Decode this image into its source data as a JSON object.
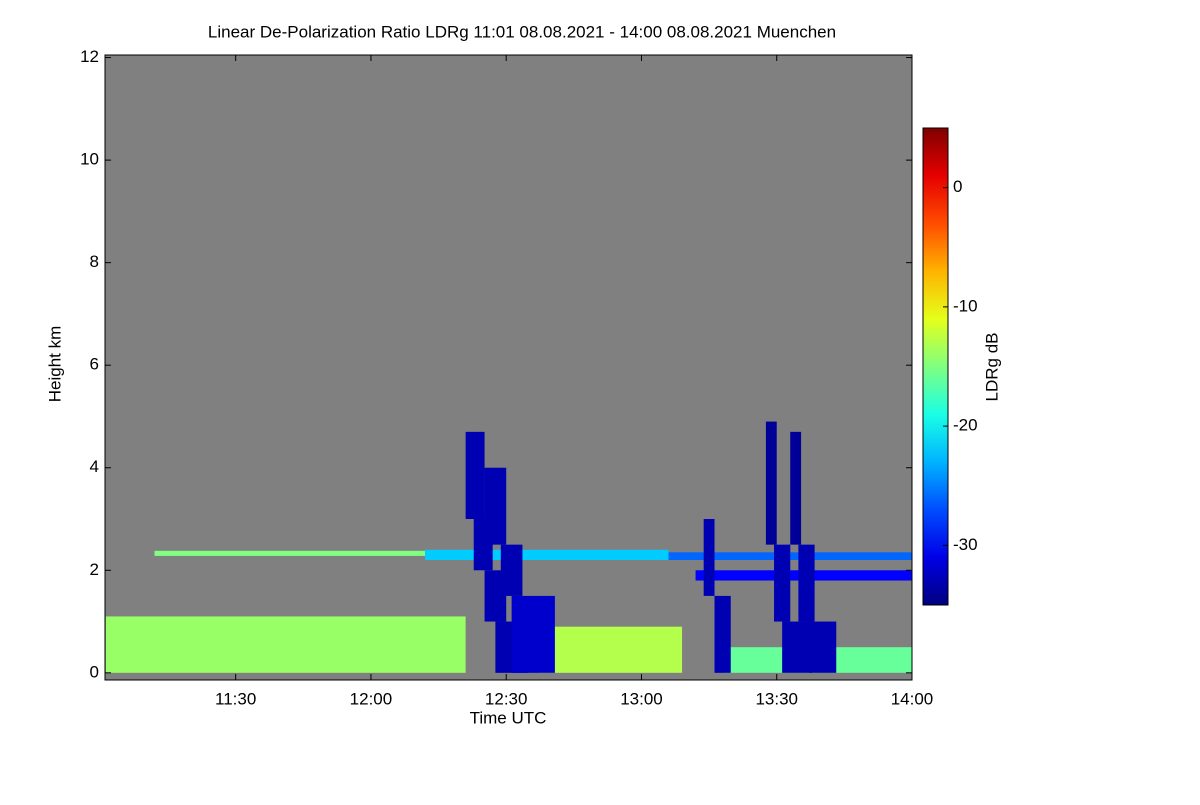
{
  "chart_data": {
    "type": "heatmap",
    "title": "Linear De-Polarization Ratio LDRg   11:01 08.08.2021 - 14:00 08.08.2021 Muenchen",
    "x_label": "Time UTC",
    "y_label": "Height km",
    "colorbar_label": "LDRg dB",
    "background_color": "#808080",
    "colormap": "jet",
    "xlim": [
      11.017,
      14.0
    ],
    "xticks": [
      {
        "value": 11.5,
        "label": "11:30"
      },
      {
        "value": 12.0,
        "label": "12:00"
      },
      {
        "value": 12.5,
        "label": "12:30"
      },
      {
        "value": 13.0,
        "label": "13:00"
      },
      {
        "value": 13.5,
        "label": "13:30"
      },
      {
        "value": 14.0,
        "label": "14:00"
      }
    ],
    "ylim": [
      -0.14,
      12.05
    ],
    "yticks": [
      0,
      2,
      4,
      6,
      8,
      10,
      12
    ],
    "clim": [
      -35,
      5
    ],
    "cticks": [
      0,
      -10,
      -20,
      -30
    ],
    "cells": [
      {
        "x": [
          11.02,
          12.35
        ],
        "y": [
          0,
          1.1
        ],
        "value": -14
      },
      {
        "x": [
          12.62,
          13.15
        ],
        "y": [
          0,
          0.9
        ],
        "value": -13
      },
      {
        "x": [
          13.3,
          14.0
        ],
        "y": [
          0,
          0.5
        ],
        "value": -16
      },
      {
        "x": [
          11.2,
          12.2
        ],
        "y": [
          2.28,
          2.38
        ],
        "value": -15
      },
      {
        "x": [
          12.2,
          13.1
        ],
        "y": [
          2.2,
          2.4
        ],
        "value": -22
      },
      {
        "x": [
          13.1,
          14.0
        ],
        "y": [
          2.2,
          2.35
        ],
        "value": -26
      },
      {
        "x": [
          13.2,
          14.0
        ],
        "y": [
          1.8,
          2.0
        ],
        "value": -30
      },
      {
        "x": [
          12.35,
          12.42
        ],
        "y": [
          3.0,
          4.7
        ],
        "value": -33
      },
      {
        "x": [
          12.38,
          12.45
        ],
        "y": [
          2.0,
          3.0
        ],
        "value": -33
      },
      {
        "x": [
          12.42,
          12.5
        ],
        "y": [
          1.0,
          2.0
        ],
        "value": -33
      },
      {
        "x": [
          12.46,
          12.58
        ],
        "y": [
          0,
          1.0
        ],
        "value": -33
      },
      {
        "x": [
          12.42,
          12.5
        ],
        "y": [
          2.5,
          4.0
        ],
        "value": -33
      },
      {
        "x": [
          12.48,
          12.56
        ],
        "y": [
          1.5,
          2.5
        ],
        "value": -33
      },
      {
        "x": [
          12.52,
          12.68
        ],
        "y": [
          0,
          1.5
        ],
        "value": -32
      },
      {
        "x": [
          13.23,
          13.27
        ],
        "y": [
          1.5,
          3.0
        ],
        "value": -33
      },
      {
        "x": [
          13.27,
          13.33
        ],
        "y": [
          0,
          1.5
        ],
        "value": -33
      },
      {
        "x": [
          13.46,
          13.5
        ],
        "y": [
          2.5,
          4.9
        ],
        "value": -34
      },
      {
        "x": [
          13.49,
          13.55
        ],
        "y": [
          1.0,
          2.5
        ],
        "value": -33
      },
      {
        "x": [
          13.52,
          13.63
        ],
        "y": [
          0,
          1.0
        ],
        "value": -33
      },
      {
        "x": [
          13.55,
          13.59
        ],
        "y": [
          2.5,
          4.7
        ],
        "value": -34
      },
      {
        "x": [
          13.58,
          13.64
        ],
        "y": [
          1.0,
          2.5
        ],
        "value": -33
      },
      {
        "x": [
          13.62,
          13.72
        ],
        "y": [
          0,
          1.0
        ],
        "value": -33
      }
    ]
  }
}
